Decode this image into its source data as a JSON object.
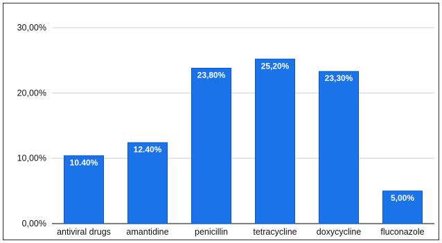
{
  "chart_data": {
    "type": "bar",
    "categories": [
      "antiviral drugs",
      "amantidine",
      "penicillin",
      "tetracycline",
      "doxycycline",
      "fluconazole"
    ],
    "values": [
      10.4,
      12.4,
      23.8,
      25.2,
      23.3,
      5.0
    ],
    "data_labels": [
      "10.40%",
      "12.40%",
      "23,80%",
      "25,20%",
      "23,30%",
      "5,00%"
    ],
    "y_ticks": [
      0,
      10,
      20,
      30
    ],
    "y_tick_labels": [
      "0,00%",
      "10,00%",
      "20,00%",
      "30,00%"
    ],
    "ylim": [
      0,
      30
    ],
    "grid": true,
    "bar_color": "#1a73e8",
    "title": "",
    "xlabel": "",
    "ylabel": ""
  }
}
